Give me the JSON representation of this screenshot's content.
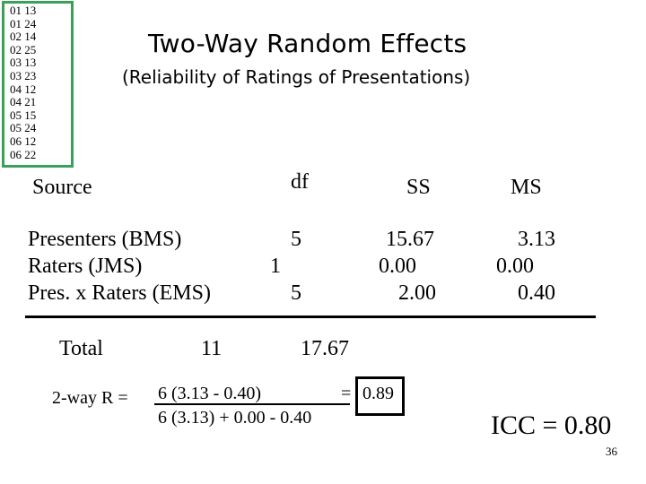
{
  "data_listing": [
    "01 13",
    "01 24",
    "02 14",
    "02 25",
    "03 13",
    "03 23",
    "04 12",
    "04 21",
    "05 15",
    "05 24",
    "06 12",
    "06 22"
  ],
  "title": "Two-Way Random Effects",
  "subtitle": "(Reliability of Ratings of Presentations)",
  "table": {
    "headers": {
      "source": "Source",
      "df": "df",
      "ss": "SS",
      "ms": "MS"
    },
    "rows": [
      {
        "source": "Presenters (BMS)",
        "df": "5",
        "ss": "15.67",
        "ms": "3.13"
      },
      {
        "source": "Raters (JMS)",
        "df": "1",
        "ss": "0.00",
        "ms": "0.00"
      },
      {
        "source": "Pres. x Raters (EMS)",
        "df": "5",
        "ss": "2.00",
        "ms": "0.40"
      }
    ],
    "total": {
      "label": "Total",
      "df": "11",
      "ss": "17.67"
    }
  },
  "formula": {
    "lhs": "2-way R =",
    "numerator": "6 (3.13 - 0.40)",
    "denominator": "6 (3.13) + 0.00 - 0.40",
    "equals": "=",
    "result": "0.89"
  },
  "icc": "ICC = 0.80",
  "slide_number": "36",
  "colors": {
    "box_border": "#3aa05a"
  }
}
